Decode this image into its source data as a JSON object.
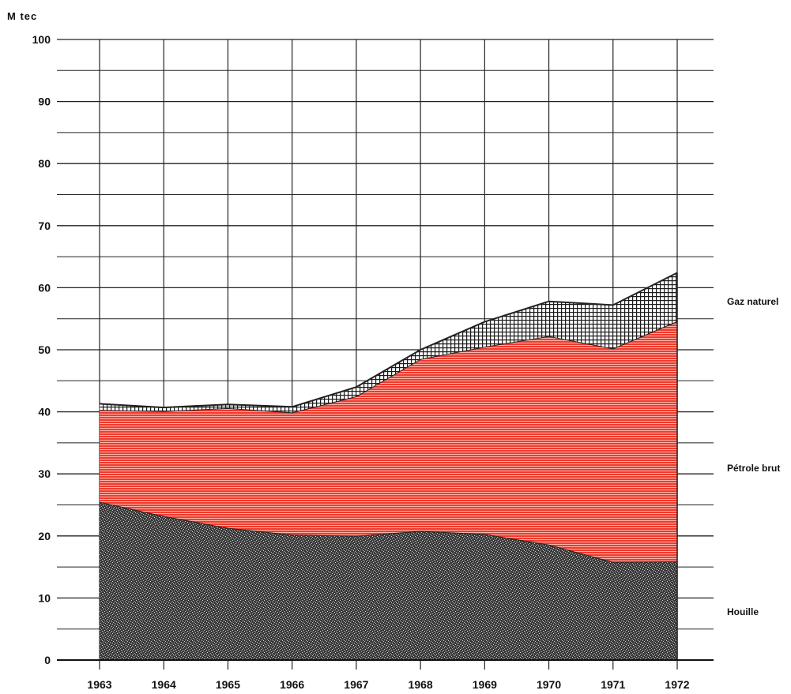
{
  "chart_data": {
    "type": "area",
    "stacked": true,
    "unit_label": "M tec",
    "x": [
      "1963",
      "1964",
      "1965",
      "1966",
      "1967",
      "1968",
      "1969",
      "1970",
      "1971",
      "1972"
    ],
    "ylim": [
      0,
      100
    ],
    "yticks": [
      0,
      10,
      20,
      30,
      40,
      50,
      60,
      70,
      80,
      90,
      100
    ],
    "grid": true,
    "series": [
      {
        "name": "Houille",
        "color": "#3a3a3a",
        "values": [
          25.5,
          23.2,
          21.3,
          20.2,
          20.0,
          20.8,
          20.3,
          18.6,
          15.8,
          15.9
        ]
      },
      {
        "name": "Pétrole brut",
        "color": "#e8251c",
        "values": [
          14.8,
          16.9,
          19.3,
          19.7,
          22.5,
          27.7,
          30.2,
          33.6,
          34.4,
          38.7
        ]
      },
      {
        "name": "Gaz naturel",
        "color": "#ffffff",
        "values": [
          1.0,
          0.6,
          0.6,
          0.9,
          1.5,
          1.5,
          4.0,
          5.6,
          7.0,
          7.8
        ]
      }
    ]
  }
}
